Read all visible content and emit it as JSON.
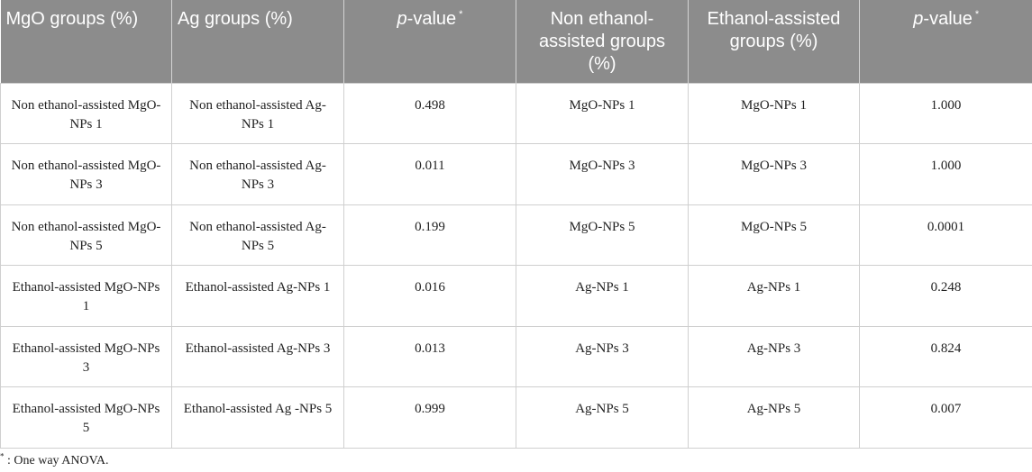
{
  "table": {
    "headers": [
      {
        "text": "MgO groups (%)"
      },
      {
        "text": "Ag groups (%)"
      },
      {
        "italic": "p",
        "rest": "-value",
        "sup": "*"
      },
      {
        "text": "Non ethanol-assisted groups (%)"
      },
      {
        "text": "Ethanol-assisted groups (%)"
      },
      {
        "italic": "p",
        "rest": "-value",
        "sup": "*"
      }
    ],
    "rows": [
      [
        "Non ethanol-assisted MgO-NPs 1",
        "Non ethanol-assisted Ag-NPs 1",
        "0.498",
        "MgO-NPs 1",
        "MgO-NPs 1",
        "1.000"
      ],
      [
        "Non ethanol-assisted MgO-NPs 3",
        "Non ethanol-assisted Ag-NPs 3",
        "0.011",
        "MgO-NPs 3",
        "MgO-NPs 3",
        "1.000"
      ],
      [
        "Non ethanol-assisted MgO-NPs 5",
        "Non ethanol-assisted Ag-NPs 5",
        "0.199",
        "MgO-NPs 5",
        "MgO-NPs 5",
        "0.0001"
      ],
      [
        "Ethanol-assisted MgO-NPs 1",
        "Ethanol-assisted Ag-NPs 1",
        "0.016",
        "Ag-NPs 1",
        "Ag-NPs 1",
        "0.248"
      ],
      [
        "Ethanol-assisted MgO-NPs 3",
        "Ethanol-assisted Ag-NPs 3",
        "0.013",
        "Ag-NPs 3",
        "Ag-NPs 3",
        "0.824"
      ],
      [
        "Ethanol-assisted MgO-NPs 5",
        "Ethanol-assisted Ag -NPs 5",
        "0.999",
        "Ag-NPs 5",
        "Ag-NPs 5",
        "0.007"
      ]
    ]
  },
  "footnote": {
    "symbol": "*",
    "text": ": One way ANOVA."
  },
  "colors": {
    "header_bg": "#8c8c8c",
    "header_text": "#ffffff",
    "grid": "#cfcfcf"
  }
}
